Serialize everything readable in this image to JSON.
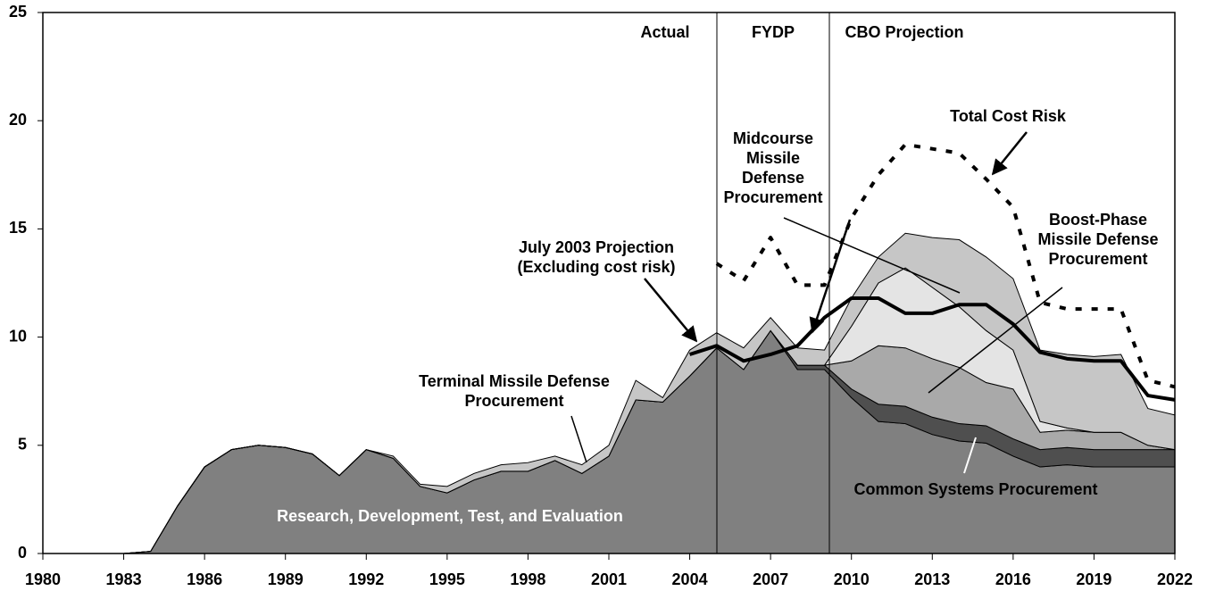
{
  "chart_data": {
    "type": "area",
    "x": [
      1980,
      1981,
      1982,
      1983,
      1984,
      1985,
      1986,
      1987,
      1988,
      1989,
      1990,
      1991,
      1992,
      1993,
      1994,
      1995,
      1996,
      1997,
      1998,
      1999,
      2000,
      2001,
      2002,
      2003,
      2004,
      2005,
      2006,
      2007,
      2008,
      2009,
      2010,
      2011,
      2012,
      2013,
      2014,
      2015,
      2016,
      2017,
      2018,
      2019,
      2020,
      2021,
      2022
    ],
    "series": [
      {
        "name": "Research, Development, Test, and Evaluation",
        "type": "area",
        "color": "#808080",
        "values": [
          0,
          0,
          0,
          0,
          0.1,
          2.2,
          4.0,
          4.8,
          5.0,
          4.9,
          4.6,
          3.6,
          4.8,
          4.4,
          3.1,
          2.8,
          3.4,
          3.8,
          3.8,
          4.3,
          3.7,
          4.5,
          7.1,
          7.0,
          8.2,
          9.5,
          8.5,
          10.3,
          8.5,
          8.5,
          7.2,
          6.1,
          6.0,
          5.5,
          5.2,
          5.1,
          4.5,
          4.0,
          4.1,
          4.0,
          4.0,
          4.0,
          4.0
        ]
      },
      {
        "name": "Common Systems Procurement",
        "type": "area",
        "color": "#4f4f4f",
        "values": [
          0,
          0,
          0,
          0,
          0,
          0,
          0,
          0,
          0,
          0,
          0,
          0,
          0,
          0,
          0,
          0,
          0,
          0,
          0,
          0,
          0,
          0,
          0,
          0,
          0,
          0,
          0,
          0,
          0.2,
          0.2,
          0.4,
          0.8,
          0.8,
          0.8,
          0.8,
          0.8,
          0.8,
          0.8,
          0.8,
          0.8,
          0.8,
          0.8,
          0.8
        ]
      },
      {
        "name": "Boost-Phase Missile Defense Procurement",
        "type": "area",
        "color": "#a9a9a9",
        "values": [
          0,
          0,
          0,
          0,
          0,
          0,
          0,
          0,
          0,
          0,
          0,
          0,
          0,
          0,
          0,
          0,
          0,
          0,
          0,
          0,
          0,
          0,
          0,
          0,
          0,
          0,
          0,
          0,
          0,
          0,
          1.3,
          2.7,
          2.7,
          2.7,
          2.6,
          2.0,
          2.3,
          0.8,
          0.8,
          0.8,
          0.8,
          0.2,
          0
        ]
      },
      {
        "name": "Midcourse Missile Defense Procurement",
        "type": "area",
        "color": "#e4e4e4",
        "values": [
          0,
          0,
          0,
          0,
          0,
          0,
          0,
          0,
          0,
          0,
          0,
          0,
          0,
          0,
          0,
          0,
          0,
          0,
          0,
          0,
          0,
          0,
          0,
          0,
          0,
          0,
          0,
          0,
          0,
          0,
          1.6,
          2.9,
          3.7,
          3.3,
          2.8,
          2.4,
          1.8,
          0.5,
          0.1,
          0,
          0,
          0,
          0
        ]
      },
      {
        "name": "Terminal Missile Defense Procurement",
        "type": "area",
        "color": "#c6c6c6",
        "values": [
          0,
          0,
          0,
          0,
          0,
          0,
          0,
          0,
          0,
          0,
          0,
          0,
          0,
          0.1,
          0.1,
          0.3,
          0.3,
          0.3,
          0.4,
          0.2,
          0.4,
          0.5,
          0.9,
          0.2,
          1.2,
          0.7,
          1.0,
          0.6,
          0.8,
          0.7,
          1.3,
          1.2,
          1.6,
          2.3,
          3.1,
          3.4,
          3.3,
          3.3,
          3.4,
          3.5,
          3.6,
          1.7,
          1.6
        ]
      },
      {
        "name": "July 2003 Projection (Excluding cost risk)",
        "type": "line",
        "color": "#000000",
        "values": [
          null,
          null,
          null,
          null,
          null,
          null,
          null,
          null,
          null,
          null,
          null,
          null,
          null,
          null,
          null,
          null,
          null,
          null,
          null,
          null,
          null,
          null,
          null,
          null,
          9.2,
          9.6,
          8.9,
          9.2,
          9.6,
          10.9,
          11.8,
          11.8,
          11.1,
          11.1,
          11.5,
          11.5,
          10.6,
          9.3,
          9.0,
          8.9,
          8.9,
          7.3,
          7.1
        ]
      },
      {
        "name": "Total Cost Risk",
        "type": "line",
        "dash": true,
        "color": "#000000",
        "values": [
          null,
          null,
          null,
          null,
          null,
          null,
          null,
          null,
          null,
          null,
          null,
          null,
          null,
          null,
          null,
          null,
          null,
          null,
          null,
          null,
          null,
          null,
          null,
          null,
          null,
          13.4,
          12.6,
          14.6,
          12.4,
          12.4,
          15.5,
          17.5,
          18.9,
          18.7,
          18.5,
          17.3,
          16.0,
          11.6,
          11.3,
          11.3,
          11.3,
          8.0,
          7.7
        ]
      }
    ],
    "annotations": [
      "Actual",
      "FYDP",
      "CBO Projection"
    ],
    "xlim": [
      1980,
      2022
    ],
    "xticks": [
      1980,
      1983,
      1986,
      1989,
      1992,
      1995,
      1998,
      2001,
      2004,
      2007,
      2010,
      2013,
      2016,
      2019,
      2022
    ],
    "ylim": [
      0,
      25
    ],
    "yticks": [
      0,
      5,
      10,
      15,
      20,
      25
    ]
  }
}
